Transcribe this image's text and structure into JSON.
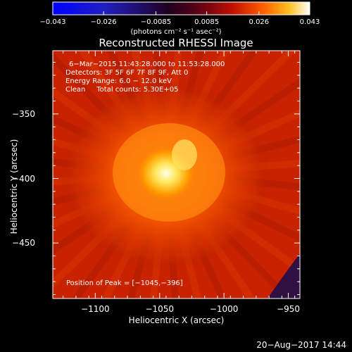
{
  "chart_data": {
    "type": "heatmap",
    "title": "Reconstructed RHESSI Image",
    "xlabel": "Heliocentric X (arcsec)",
    "ylabel": "Heliocentric Y (arcsec)",
    "xlim": [
      -1133,
      -941
    ],
    "ylim": [
      -493,
      -301
    ],
    "x_ticks": [
      {
        "value": -1100,
        "label": "−1100"
      },
      {
        "value": -1050,
        "label": "−1050"
      },
      {
        "value": -1000,
        "label": "−1000"
      },
      {
        "value": -950,
        "label": "−950"
      }
    ],
    "y_ticks": [
      {
        "value": -350,
        "label": "−350"
      },
      {
        "value": -400,
        "label": "−400"
      },
      {
        "value": -450,
        "label": "−450"
      }
    ],
    "colorbar": {
      "range": [
        -0.043,
        0.043
      ],
      "units": "(photons cm⁻² s⁻¹ asec⁻²)",
      "ticks": [
        {
          "value": -0.043,
          "label": "−0.043"
        },
        {
          "value": -0.026,
          "label": "−0.026"
        },
        {
          "value": -0.0085,
          "label": "−0.0085"
        },
        {
          "value": 0.0085,
          "label": "0.0085"
        },
        {
          "value": 0.026,
          "label": "0.026"
        },
        {
          "value": 0.043,
          "label": "0.043"
        }
      ]
    },
    "peak": {
      "x": -1045,
      "y": -396,
      "value": 0.043
    },
    "annotations": {
      "time_range": "6−Mar−2015 11:43:28.000 to 11:53:28.000",
      "detectors": "Detectors: 3F 5F 6F 7F 8F 9F, Att 0",
      "energy_range": "Energy Range: 6.0 − 12.0 keV",
      "clean": "Clean     Total counts: 5.30E+05",
      "peak_position": "Position of Peak = [−1045,−396]"
    },
    "grid": false
  },
  "footer": {
    "timestamp": "20−Aug−2017 14:44"
  }
}
